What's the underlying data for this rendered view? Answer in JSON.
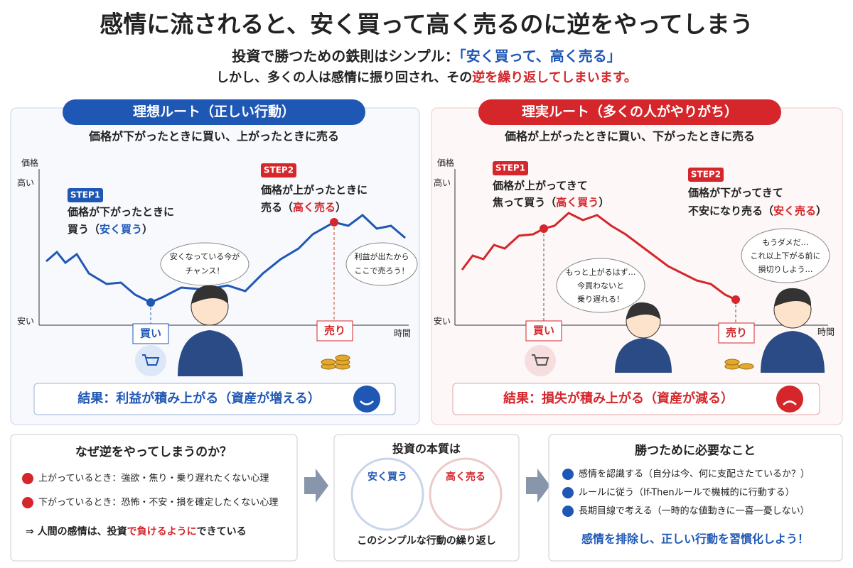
{
  "header": {
    "title": "感情に流されると、安く買って高く売るのに逆をやってしまう",
    "subtitle": [
      "投資で勝つための鉄則はシンプル：",
      "「安く買って、高く売る」"
    ],
    "lead": [
      "しかし、多くの人は感情に振り回され、その",
      "逆を繰り返してしまいます。"
    ]
  },
  "ideal": {
    "title": "理想ルート（正しい行動）",
    "caption": "価格が下がったときに買い、上がったときに売る",
    "y_label": "価格",
    "y_high": "高い",
    "y_low": "安い",
    "x_label": "時間",
    "step1": {
      "tag": "STEP1",
      "line1": "価格が下がったときに",
      "line2": [
        "買う（",
        "安く買う",
        "）"
      ]
    },
    "step2": {
      "tag": "STEP2",
      "line1": "価格が上がったときに",
      "line2": [
        "売る（",
        "高く売る",
        "）"
      ]
    },
    "bubble1": [
      "安くなっている今が",
      "チャンス！"
    ],
    "bubble2": [
      "利益が出たから",
      "ここで売ろう！"
    ],
    "buy": "買い",
    "sell": "売り",
    "result": "結果：利益が積み上がる（資産が増える）"
  },
  "reality": {
    "title": "理実ルート（多くの人がやりがち）",
    "caption": "価格が上がったときに買い、下がったときに売る",
    "y_label": "価格",
    "y_high": "高い",
    "y_low": "安い",
    "x_label": "時間",
    "step1": {
      "tag": "STEP1",
      "line1": "価格が上がってきて",
      "line2": [
        "焦って買う（",
        "高く買う",
        "）"
      ]
    },
    "step2": {
      "tag": "STEP2",
      "line1": "価格が下がってきて",
      "line2": [
        "不安になり売る（",
        "安く売る",
        "）"
      ]
    },
    "bubble1": [
      "もっと上がるはず…",
      "今買わないと",
      "乗り遅れる！"
    ],
    "bubble2": [
      "もうダメだ…",
      "これ以上下がる前に",
      "損切りしよう…"
    ],
    "buy": "買い",
    "sell": "売り",
    "result": "結果：損失が積み上がる（資産が減る）"
  },
  "why": {
    "title": "なぜ逆をやってしまうのか？",
    "items": [
      "上がっているとき：強欲・焦り・乗り遅れたくない心理",
      "下がっているとき：恐怖・不安・損を確定したくない心理"
    ],
    "conclusion": [
      "⇒ 人間の感情は、投資",
      "で負けるように",
      "できている"
    ]
  },
  "essence": {
    "title": "投資の本質は",
    "low": "安く買う",
    "high": "高く売る",
    "caption": "このシンプルな行動の繰り返し"
  },
  "need": {
    "title": "勝つために必要なこと",
    "items": [
      "感情を認識する（自分は今、何に支配さたているか？）",
      "ルールに従う（If-Thenルールで機械的に行動する）",
      "長期目線で考える（一時的な値動きに一喜一憂しない）"
    ],
    "slogan": "感情を排除し、正しい行動を習慣化しよう！"
  }
}
